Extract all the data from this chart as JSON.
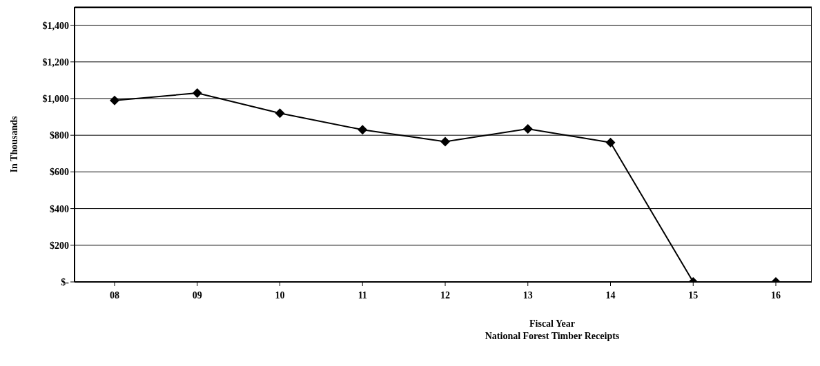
{
  "chart_data": {
    "type": "line",
    "title": "National Forest Timber Receipts",
    "xlabel": "Fiscal Year",
    "ylabel": "In Thousands",
    "categories": [
      "08",
      "09",
      "10",
      "11",
      "12",
      "13",
      "14",
      "15",
      "16"
    ],
    "series": [
      {
        "color": "#000000",
        "values": [
          990,
          1030,
          920,
          830,
          765,
          835,
          760,
          0,
          0
        ]
      }
    ],
    "ylim": [
      0,
      1500
    ],
    "yticks": [
      {
        "value": 0,
        "label": "$-"
      },
      {
        "value": 200,
        "label": "$200"
      },
      {
        "value": 400,
        "label": "$400"
      },
      {
        "value": 600,
        "label": "$600"
      },
      {
        "value": 800,
        "label": "$800"
      },
      {
        "value": 1000,
        "label": "$1,000"
      },
      {
        "value": 1200,
        "label": "$1,200"
      },
      {
        "value": 1400,
        "label": "$1,400"
      }
    ],
    "grid": "y",
    "marker": "diamond",
    "line_style": "solid",
    "legend": false
  }
}
